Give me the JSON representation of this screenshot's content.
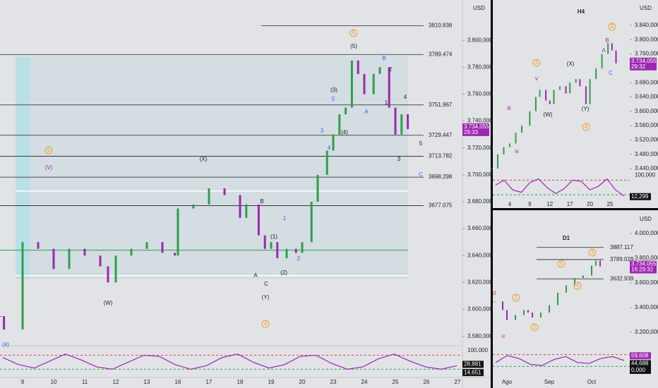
{
  "main": {
    "currency": "USD",
    "ylim": [
      3573,
      3830
    ],
    "yticks": [
      {
        "value": 3800,
        "label": "3.800,000"
      },
      {
        "value": 3780,
        "label": "3.780,000"
      },
      {
        "value": 3760,
        "label": "3.760,000"
      },
      {
        "value": 3740,
        "label": "3.740,000"
      },
      {
        "value": 3720,
        "label": "3.720,000"
      },
      {
        "value": 3700,
        "label": "3.700,000"
      },
      {
        "value": 3680,
        "label": "3.680,000"
      },
      {
        "value": 3660,
        "label": "3.660,000"
      },
      {
        "value": 3640,
        "label": "3.640,000"
      },
      {
        "value": 3620,
        "label": "3.620,000"
      },
      {
        "value": 3600,
        "label": "3.600,000"
      },
      {
        "value": 3580,
        "label": "3.580,000"
      }
    ],
    "levels": [
      {
        "value": 3810.838,
        "label": "3810.838"
      },
      {
        "value": 3789.474,
        "label": "3789.474"
      },
      {
        "value": 3751.967,
        "label": "3751.967"
      },
      {
        "value": 3729.447,
        "label": "3729.447"
      },
      {
        "value": 3713.782,
        "label": "3713.782"
      },
      {
        "value": 3698.298,
        "label": "3698.298"
      },
      {
        "value": 3677.075,
        "label": "3677.075"
      }
    ],
    "white_lines": [
      3688,
      3625
    ],
    "green_line": 3644,
    "x_labels": [
      "9",
      "10",
      "11",
      "12",
      "13",
      "16",
      "17",
      "18",
      "19",
      "20",
      "23",
      "24",
      "25",
      "26",
      "27"
    ],
    "candle_x": [
      -0.7,
      -0.6,
      0,
      0.5,
      1,
      1.5,
      2,
      2.5,
      2.75,
      3,
      3.5,
      4,
      4.5,
      4.9,
      5,
      5.5,
      6,
      6.5,
      7,
      7.2,
      7.6,
      7.8,
      8,
      8.2,
      8.5,
      8.8,
      9,
      9.3,
      9.5,
      9.8,
      10,
      10.2,
      10.4,
      10.6,
      10.8,
      11,
      11.3,
      11.5,
      11.8,
      12,
      12.2,
      12.4
    ],
    "candles": [
      3595,
      3585,
      3650,
      3645,
      3630,
      3645,
      3640,
      3632,
      3620,
      3640,
      3645,
      3650,
      3642,
      3640,
      3675,
      3678,
      3690,
      3685,
      3668,
      3678,
      3655,
      3645,
      3650,
      3638,
      3645,
      3642,
      3650,
      3680,
      3700,
      3718,
      3730,
      3745,
      3750,
      3785,
      3775,
      3760,
      3775,
      3780,
      3750,
      3730,
      3745,
      3734
    ],
    "price_tag": {
      "value": 3734.055,
      "label": "3.734,055"
    },
    "countdown": "29:33",
    "wave_labels": [
      "5",
      "(5)",
      "B",
      "2",
      "(3)",
      "5",
      "1",
      "4",
      "A",
      "3",
      "(4)",
      "4",
      "3",
      "5",
      "C",
      "5",
      "(V)",
      "(X)",
      "B",
      "1",
      "(1)",
      "2",
      "(2)",
      "A",
      "C",
      "(Y)",
      "(W)",
      "4",
      "(4)"
    ],
    "oscillator": {
      "ylim": [
        0,
        121
      ],
      "levels": [
        80,
        20
      ],
      "top_label": "100,000",
      "values": [
        70,
        40,
        25,
        55,
        85,
        60,
        30,
        20,
        50,
        80,
        75,
        40,
        20,
        35,
        70,
        85,
        50,
        25,
        40,
        75,
        80,
        45,
        20,
        30,
        65,
        85,
        55,
        30,
        20,
        35
      ],
      "tags": [
        {
          "value": 28.881,
          "label": "28,881"
        },
        {
          "value": 14.651,
          "label": "14,651"
        }
      ]
    }
  },
  "h4": {
    "title": "H4",
    "currency": "USD",
    "ylim": [
      3438,
      3911
    ],
    "yticks": [
      {
        "value": 3840,
        "label": "3.840,000"
      },
      {
        "value": 3800,
        "label": "3.800,000"
      },
      {
        "value": 3760,
        "label": "3.760,000"
      },
      {
        "value": 3680,
        "label": "3.680,000"
      },
      {
        "value": 3640,
        "label": "3.640,000"
      },
      {
        "value": 3600,
        "label": "3.600,000"
      },
      {
        "value": 3560,
        "label": "3.560,000"
      },
      {
        "value": 3520,
        "label": "3.520,000"
      },
      {
        "value": 3480,
        "label": "3.480,000"
      },
      {
        "value": 3440,
        "label": "3.440,000"
      }
    ],
    "x_labels": [
      "4",
      "9",
      "12",
      "17",
      "20",
      "25"
    ],
    "candle_x": [
      -0.9,
      -0.6,
      -0.3,
      0,
      0.3,
      0.6,
      1,
      1.3,
      1.5,
      1.8,
      2,
      2.2,
      2.5,
      2.8,
      3,
      3.3,
      3.5,
      3.8,
      4,
      4.3,
      4.6,
      4.9,
      5.1,
      5.3
    ],
    "candles": [
      3440,
      3480,
      3500,
      3510,
      3540,
      3560,
      3600,
      3640,
      3660,
      3630,
      3620,
      3660,
      3670,
      3650,
      3680,
      3690,
      3670,
      3620,
      3690,
      3720,
      3760,
      3790,
      3770,
      3734
    ],
    "price_tag": {
      "value": 3734.055,
      "label": "3.734,055"
    },
    "countdown": "29:32",
    "wave_labels": [
      "5",
      "B",
      "A",
      "C",
      "3",
      "v",
      "(X)",
      "iii",
      "(W)",
      "(Y)",
      "4",
      "iv"
    ],
    "oscillator": {
      "ylim": [
        0,
        110
      ],
      "levels": [
        80,
        20
      ],
      "top_label": "100,000",
      "values": [
        60,
        80,
        40,
        30,
        70,
        85,
        50,
        25,
        45,
        80,
        75,
        40,
        55,
        85,
        40,
        15
      ],
      "tags": [
        {
          "value": 12.299,
          "label": "12,299"
        }
      ]
    }
  },
  "d1": {
    "title": "D1",
    "currency": "USD",
    "ylim": [
      3006,
      4120
    ],
    "yticks": [
      {
        "value": 4000,
        "label": "4.000,000"
      },
      {
        "value": 3800,
        "label": "3.800,000"
      },
      {
        "value": 3600,
        "label": "3.600,000"
      },
      {
        "value": 3400,
        "label": "3.400,000"
      },
      {
        "value": 3200,
        "label": "3.200,000"
      }
    ],
    "levels": [
      {
        "value": 3887.117,
        "label": "3887.117"
      },
      {
        "value": 3789.019,
        "label": "3789.019"
      },
      {
        "value": 3632.939,
        "label": "3632.939"
      }
    ],
    "x_labels": [
      "Ago",
      "Sep",
      "Oct"
    ],
    "candle_x": [
      -0.3,
      -0.1,
      0,
      0.2,
      0.4,
      0.5,
      0.6,
      0.8,
      1,
      1.2,
      1.4,
      1.6,
      1.8,
      2,
      2.1,
      2.2
    ],
    "candles": [
      3450,
      3380,
      3300,
      3340,
      3380,
      3360,
      3320,
      3360,
      3420,
      3520,
      3580,
      3640,
      3660,
      3740,
      3780,
      3734
    ],
    "price_tag": {
      "value": 3734.055,
      "label": "3.734,055"
    },
    "countdown": "16:29:32",
    "wave_labels": [
      "3",
      "5",
      "4",
      "1",
      "2",
      "d",
      "e"
    ],
    "oscillator": {
      "ylim": [
        0,
        100
      ],
      "levels": [
        80,
        20
      ],
      "values": [
        40,
        75,
        60,
        30,
        25,
        55,
        70,
        40,
        35,
        60,
        70,
        50
      ],
      "tags": [
        {
          "value": 59.608,
          "label": "59,608"
        },
        {
          "value": 44.688,
          "label": "44,688"
        },
        {
          "value": 0,
          "label": "0,000"
        }
      ]
    }
  }
}
